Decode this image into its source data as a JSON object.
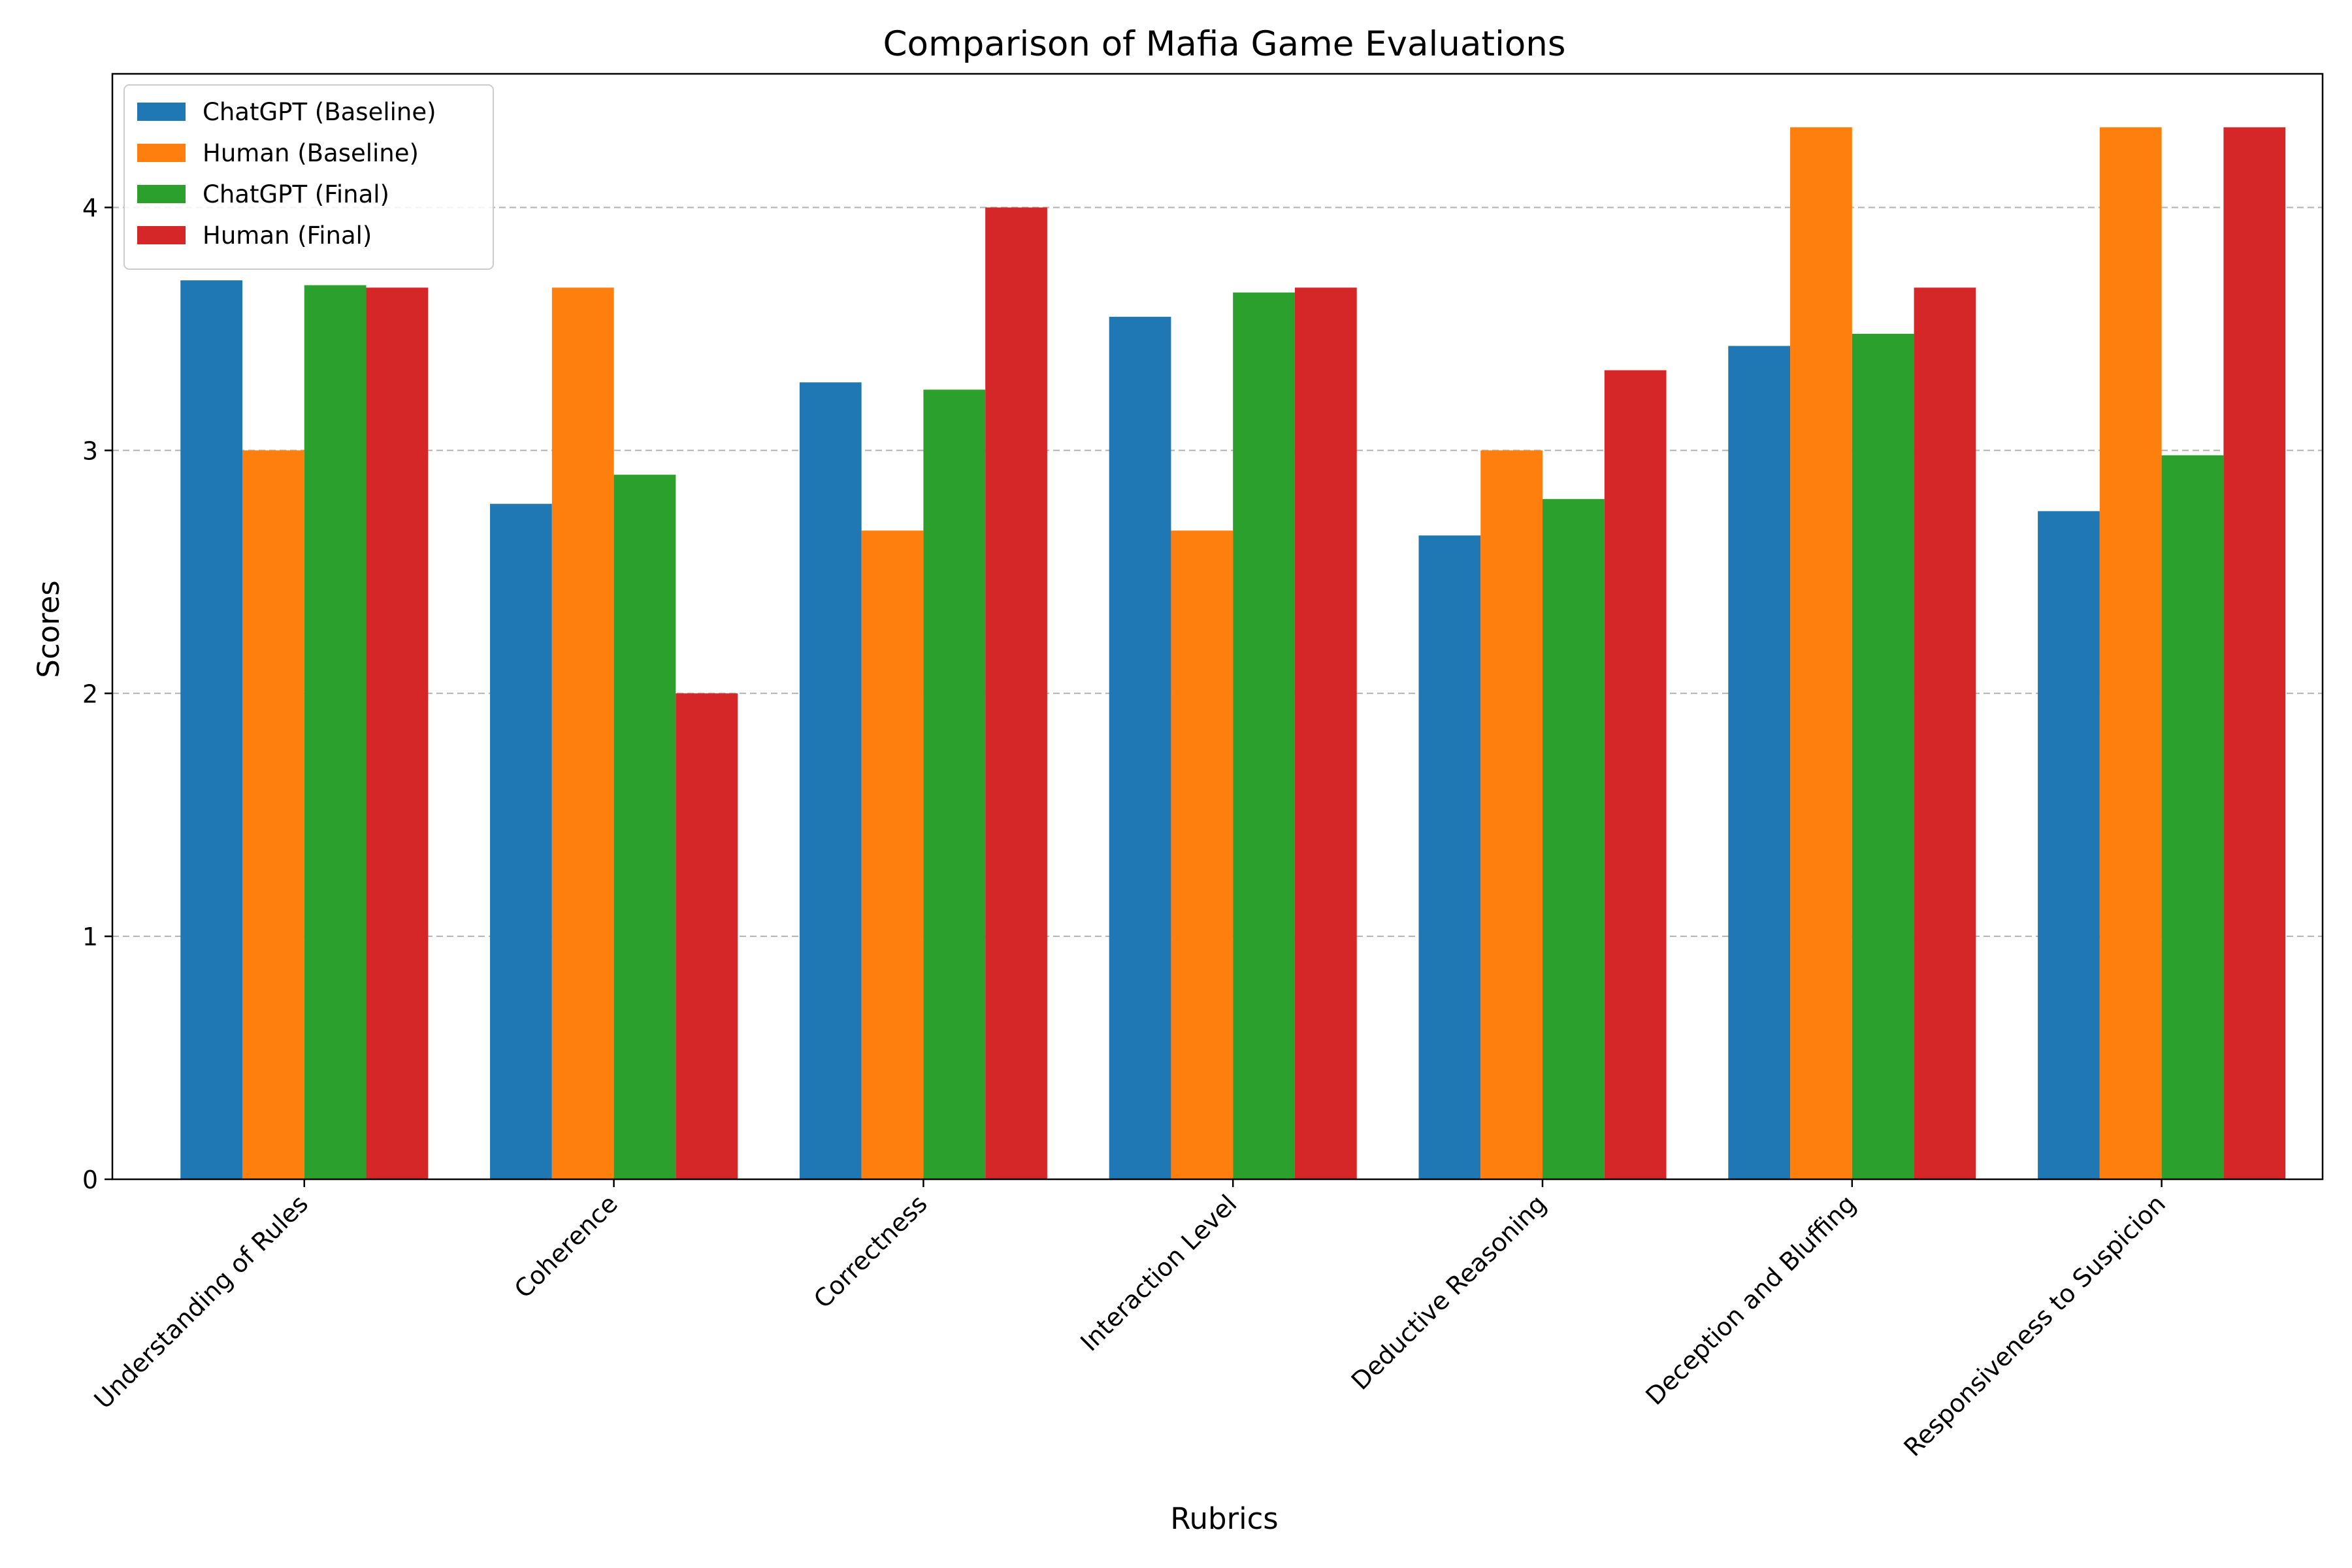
{
  "chart_data": {
    "type": "bar",
    "title": "Comparison of Mafia Game Evaluations",
    "xlabel": "Rubrics",
    "ylabel": "Scores",
    "ylim": [
      0,
      4.55
    ],
    "yticks": [
      0,
      1,
      2,
      3,
      4
    ],
    "grid": "y-dashed",
    "legend_position": "top-left",
    "categories": [
      "Understanding of Rules",
      "Coherence",
      "Correctness",
      "Interaction Level",
      "Deductive Reasoning",
      "Deception and Bluffing",
      "Responsiveness to Suspicion"
    ],
    "series": [
      {
        "name": "ChatGPT (Baseline)",
        "color": "#1f77b4",
        "values": [
          3.7,
          2.78,
          3.28,
          3.55,
          2.65,
          3.43,
          2.75
        ]
      },
      {
        "name": "Human (Baseline)",
        "color": "#ff7f0e",
        "values": [
          3.0,
          3.67,
          2.67,
          2.67,
          3.0,
          4.33,
          4.33
        ]
      },
      {
        "name": "ChatGPT (Final)",
        "color": "#2ca02c",
        "values": [
          3.68,
          2.9,
          3.25,
          3.65,
          2.8,
          3.48,
          2.98
        ]
      },
      {
        "name": "Human (Final)",
        "color": "#d62728",
        "values": [
          3.67,
          2.0,
          4.0,
          3.67,
          3.33,
          3.67,
          4.33
        ]
      }
    ]
  }
}
